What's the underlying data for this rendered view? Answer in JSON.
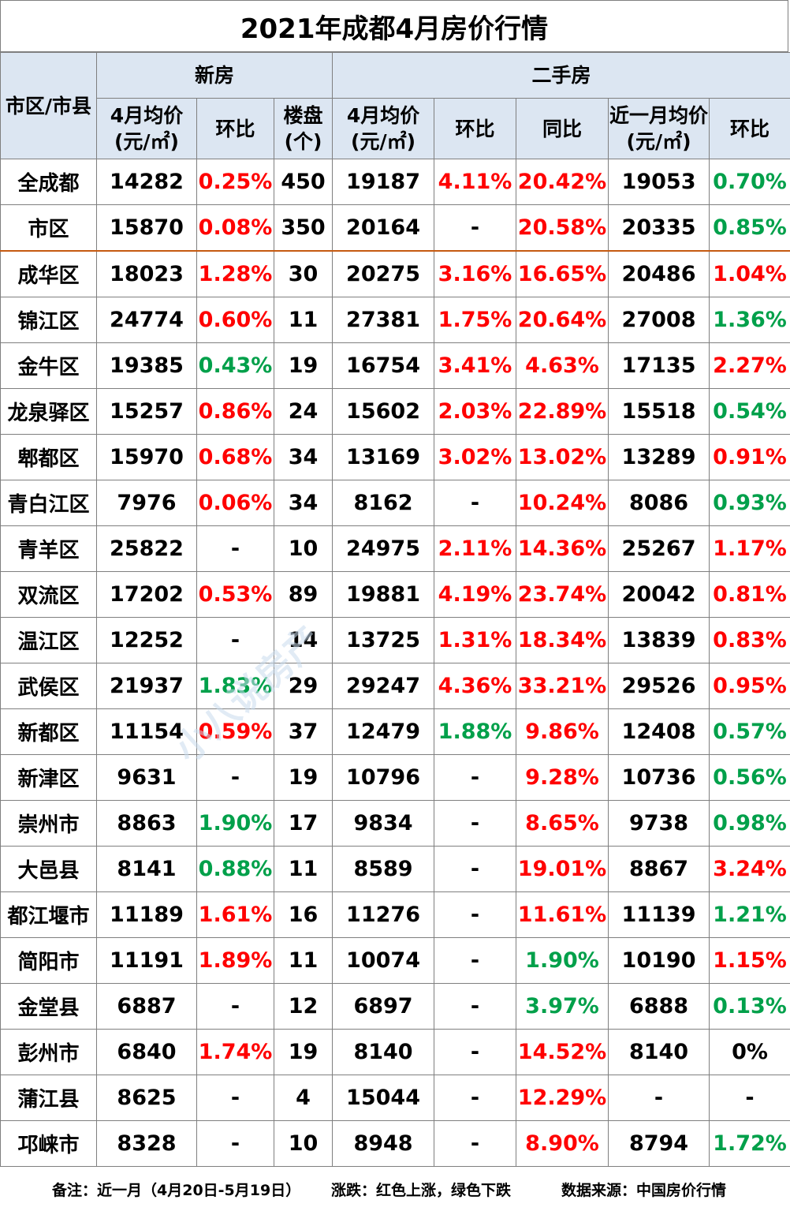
{
  "title": "2021年成都4月房价行情",
  "header": {
    "district": "市区/市县",
    "new_group": "新房",
    "second_group": "二手房",
    "cols": [
      "4月均价(元/㎡)",
      "环比",
      "楼盘(个)",
      "4月均价(元/㎡)",
      "环比",
      "同比",
      "近一月均价(元/㎡)",
      "环比"
    ]
  },
  "colors": {
    "up": "#ff0000",
    "down": "#00a04a",
    "header_bg": "#dce6f2"
  },
  "rows": [
    {
      "area": "全成都",
      "new_price": "14282",
      "new_mom": "0.25%",
      "new_mom_dir": "up",
      "projects": "450",
      "sh_price": "19187",
      "sh_mom": "4.11%",
      "sh_mom_dir": "up",
      "sh_yoy": "20.42%",
      "sh_yoy_dir": "up",
      "recent_price": "19053",
      "recent_mom": "0.70%",
      "recent_mom_dir": "down"
    },
    {
      "area": "市区",
      "new_price": "15870",
      "new_mom": "0.08%",
      "new_mom_dir": "up",
      "projects": "350",
      "sh_price": "20164",
      "sh_mom": "-",
      "sh_mom_dir": "",
      "sh_yoy": "20.58%",
      "sh_yoy_dir": "up",
      "recent_price": "20335",
      "recent_mom": "0.85%",
      "recent_mom_dir": "down"
    },
    {
      "area": "成华区",
      "new_price": "18023",
      "new_mom": "1.28%",
      "new_mom_dir": "up",
      "projects": "30",
      "sh_price": "20275",
      "sh_mom": "3.16%",
      "sh_mom_dir": "up",
      "sh_yoy": "16.65%",
      "sh_yoy_dir": "up",
      "recent_price": "20486",
      "recent_mom": "1.04%",
      "recent_mom_dir": "up"
    },
    {
      "area": "锦江区",
      "new_price": "24774",
      "new_mom": "0.60%",
      "new_mom_dir": "up",
      "projects": "11",
      "sh_price": "27381",
      "sh_mom": "1.75%",
      "sh_mom_dir": "up",
      "sh_yoy": "20.64%",
      "sh_yoy_dir": "up",
      "recent_price": "27008",
      "recent_mom": "1.36%",
      "recent_mom_dir": "down"
    },
    {
      "area": "金牛区",
      "new_price": "19385",
      "new_mom": "0.43%",
      "new_mom_dir": "down",
      "projects": "19",
      "sh_price": "16754",
      "sh_mom": "3.41%",
      "sh_mom_dir": "up",
      "sh_yoy": "4.63%",
      "sh_yoy_dir": "up",
      "recent_price": "17135",
      "recent_mom": "2.27%",
      "recent_mom_dir": "up"
    },
    {
      "area": "龙泉驿区",
      "new_price": "15257",
      "new_mom": "0.86%",
      "new_mom_dir": "up",
      "projects": "24",
      "sh_price": "15602",
      "sh_mom": "2.03%",
      "sh_mom_dir": "up",
      "sh_yoy": "22.89%",
      "sh_yoy_dir": "up",
      "recent_price": "15518",
      "recent_mom": "0.54%",
      "recent_mom_dir": "down"
    },
    {
      "area": "郫都区",
      "new_price": "15970",
      "new_mom": "0.68%",
      "new_mom_dir": "up",
      "projects": "34",
      "sh_price": "13169",
      "sh_mom": "3.02%",
      "sh_mom_dir": "up",
      "sh_yoy": "13.02%",
      "sh_yoy_dir": "up",
      "recent_price": "13289",
      "recent_mom": "0.91%",
      "recent_mom_dir": "up"
    },
    {
      "area": "青白江区",
      "new_price": "7976",
      "new_mom": "0.06%",
      "new_mom_dir": "up",
      "projects": "34",
      "sh_price": "8162",
      "sh_mom": "-",
      "sh_mom_dir": "",
      "sh_yoy": "10.24%",
      "sh_yoy_dir": "up",
      "recent_price": "8086",
      "recent_mom": "0.93%",
      "recent_mom_dir": "down"
    },
    {
      "area": "青羊区",
      "new_price": "25822",
      "new_mom": "-",
      "new_mom_dir": "",
      "projects": "10",
      "sh_price": "24975",
      "sh_mom": "2.11%",
      "sh_mom_dir": "up",
      "sh_yoy": "14.36%",
      "sh_yoy_dir": "up",
      "recent_price": "25267",
      "recent_mom": "1.17%",
      "recent_mom_dir": "up"
    },
    {
      "area": "双流区",
      "new_price": "17202",
      "new_mom": "0.53%",
      "new_mom_dir": "up",
      "projects": "89",
      "sh_price": "19881",
      "sh_mom": "4.19%",
      "sh_mom_dir": "up",
      "sh_yoy": "23.74%",
      "sh_yoy_dir": "up",
      "recent_price": "20042",
      "recent_mom": "0.81%",
      "recent_mom_dir": "up"
    },
    {
      "area": "温江区",
      "new_price": "12252",
      "new_mom": "-",
      "new_mom_dir": "",
      "projects": "14",
      "sh_price": "13725",
      "sh_mom": "1.31%",
      "sh_mom_dir": "up",
      "sh_yoy": "18.34%",
      "sh_yoy_dir": "up",
      "recent_price": "13839",
      "recent_mom": "0.83%",
      "recent_mom_dir": "up"
    },
    {
      "area": "武侯区",
      "new_price": "21937",
      "new_mom": "1.83%",
      "new_mom_dir": "down",
      "projects": "29",
      "sh_price": "29247",
      "sh_mom": "4.36%",
      "sh_mom_dir": "up",
      "sh_yoy": "33.21%",
      "sh_yoy_dir": "up",
      "recent_price": "29526",
      "recent_mom": "0.95%",
      "recent_mom_dir": "up"
    },
    {
      "area": "新都区",
      "new_price": "11154",
      "new_mom": "0.59%",
      "new_mom_dir": "up",
      "projects": "37",
      "sh_price": "12479",
      "sh_mom": "1.88%",
      "sh_mom_dir": "down",
      "sh_yoy": "9.86%",
      "sh_yoy_dir": "up",
      "recent_price": "12408",
      "recent_mom": "0.57%",
      "recent_mom_dir": "down"
    },
    {
      "area": "新津区",
      "new_price": "9631",
      "new_mom": "-",
      "new_mom_dir": "",
      "projects": "19",
      "sh_price": "10796",
      "sh_mom": "-",
      "sh_mom_dir": "",
      "sh_yoy": "9.28%",
      "sh_yoy_dir": "up",
      "recent_price": "10736",
      "recent_mom": "0.56%",
      "recent_mom_dir": "down"
    },
    {
      "area": "崇州市",
      "new_price": "8863",
      "new_mom": "1.90%",
      "new_mom_dir": "down",
      "projects": "17",
      "sh_price": "9834",
      "sh_mom": "-",
      "sh_mom_dir": "",
      "sh_yoy": "8.65%",
      "sh_yoy_dir": "up",
      "recent_price": "9738",
      "recent_mom": "0.98%",
      "recent_mom_dir": "down"
    },
    {
      "area": "大邑县",
      "new_price": "8141",
      "new_mom": "0.88%",
      "new_mom_dir": "down",
      "projects": "11",
      "sh_price": "8589",
      "sh_mom": "-",
      "sh_mom_dir": "",
      "sh_yoy": "19.01%",
      "sh_yoy_dir": "up",
      "recent_price": "8867",
      "recent_mom": "3.24%",
      "recent_mom_dir": "up"
    },
    {
      "area": "都江堰市",
      "new_price": "11189",
      "new_mom": "1.61%",
      "new_mom_dir": "up",
      "projects": "16",
      "sh_price": "11276",
      "sh_mom": "-",
      "sh_mom_dir": "",
      "sh_yoy": "11.61%",
      "sh_yoy_dir": "up",
      "recent_price": "11139",
      "recent_mom": "1.21%",
      "recent_mom_dir": "down"
    },
    {
      "area": "简阳市",
      "new_price": "11191",
      "new_mom": "1.89%",
      "new_mom_dir": "up",
      "projects": "11",
      "sh_price": "10074",
      "sh_mom": "-",
      "sh_mom_dir": "",
      "sh_yoy": "1.90%",
      "sh_yoy_dir": "down",
      "recent_price": "10190",
      "recent_mom": "1.15%",
      "recent_mom_dir": "up"
    },
    {
      "area": "金堂县",
      "new_price": "6887",
      "new_mom": "-",
      "new_mom_dir": "",
      "projects": "12",
      "sh_price": "6897",
      "sh_mom": "-",
      "sh_mom_dir": "",
      "sh_yoy": "3.97%",
      "sh_yoy_dir": "down",
      "recent_price": "6888",
      "recent_mom": "0.13%",
      "recent_mom_dir": "down"
    },
    {
      "area": "彭州市",
      "new_price": "6840",
      "new_mom": "1.74%",
      "new_mom_dir": "up",
      "projects": "19",
      "sh_price": "8140",
      "sh_mom": "-",
      "sh_mom_dir": "",
      "sh_yoy": "14.52%",
      "sh_yoy_dir": "up",
      "recent_price": "8140",
      "recent_mom": "0%",
      "recent_mom_dir": ""
    },
    {
      "area": "蒲江县",
      "new_price": "8625",
      "new_mom": "-",
      "new_mom_dir": "",
      "projects": "4",
      "sh_price": "15044",
      "sh_mom": "-",
      "sh_mom_dir": "",
      "sh_yoy": "12.29%",
      "sh_yoy_dir": "up",
      "recent_price": "-",
      "recent_mom": "-",
      "recent_mom_dir": ""
    },
    {
      "area": "邛崃市",
      "new_price": "8328",
      "new_mom": "-",
      "new_mom_dir": "",
      "projects": "10",
      "sh_price": "8948",
      "sh_mom": "-",
      "sh_mom_dir": "",
      "sh_yoy": "8.90%",
      "sh_yoy_dir": "up",
      "recent_price": "8794",
      "recent_mom": "1.72%",
      "recent_mom_dir": "down"
    }
  ],
  "footer": {
    "note": "备注：近一月（4月20日-5月19日）",
    "legend": "涨跌：红色上涨，绿色下跌",
    "source": "数据来源：中国房价行情"
  },
  "watermark": "小八说房产"
}
